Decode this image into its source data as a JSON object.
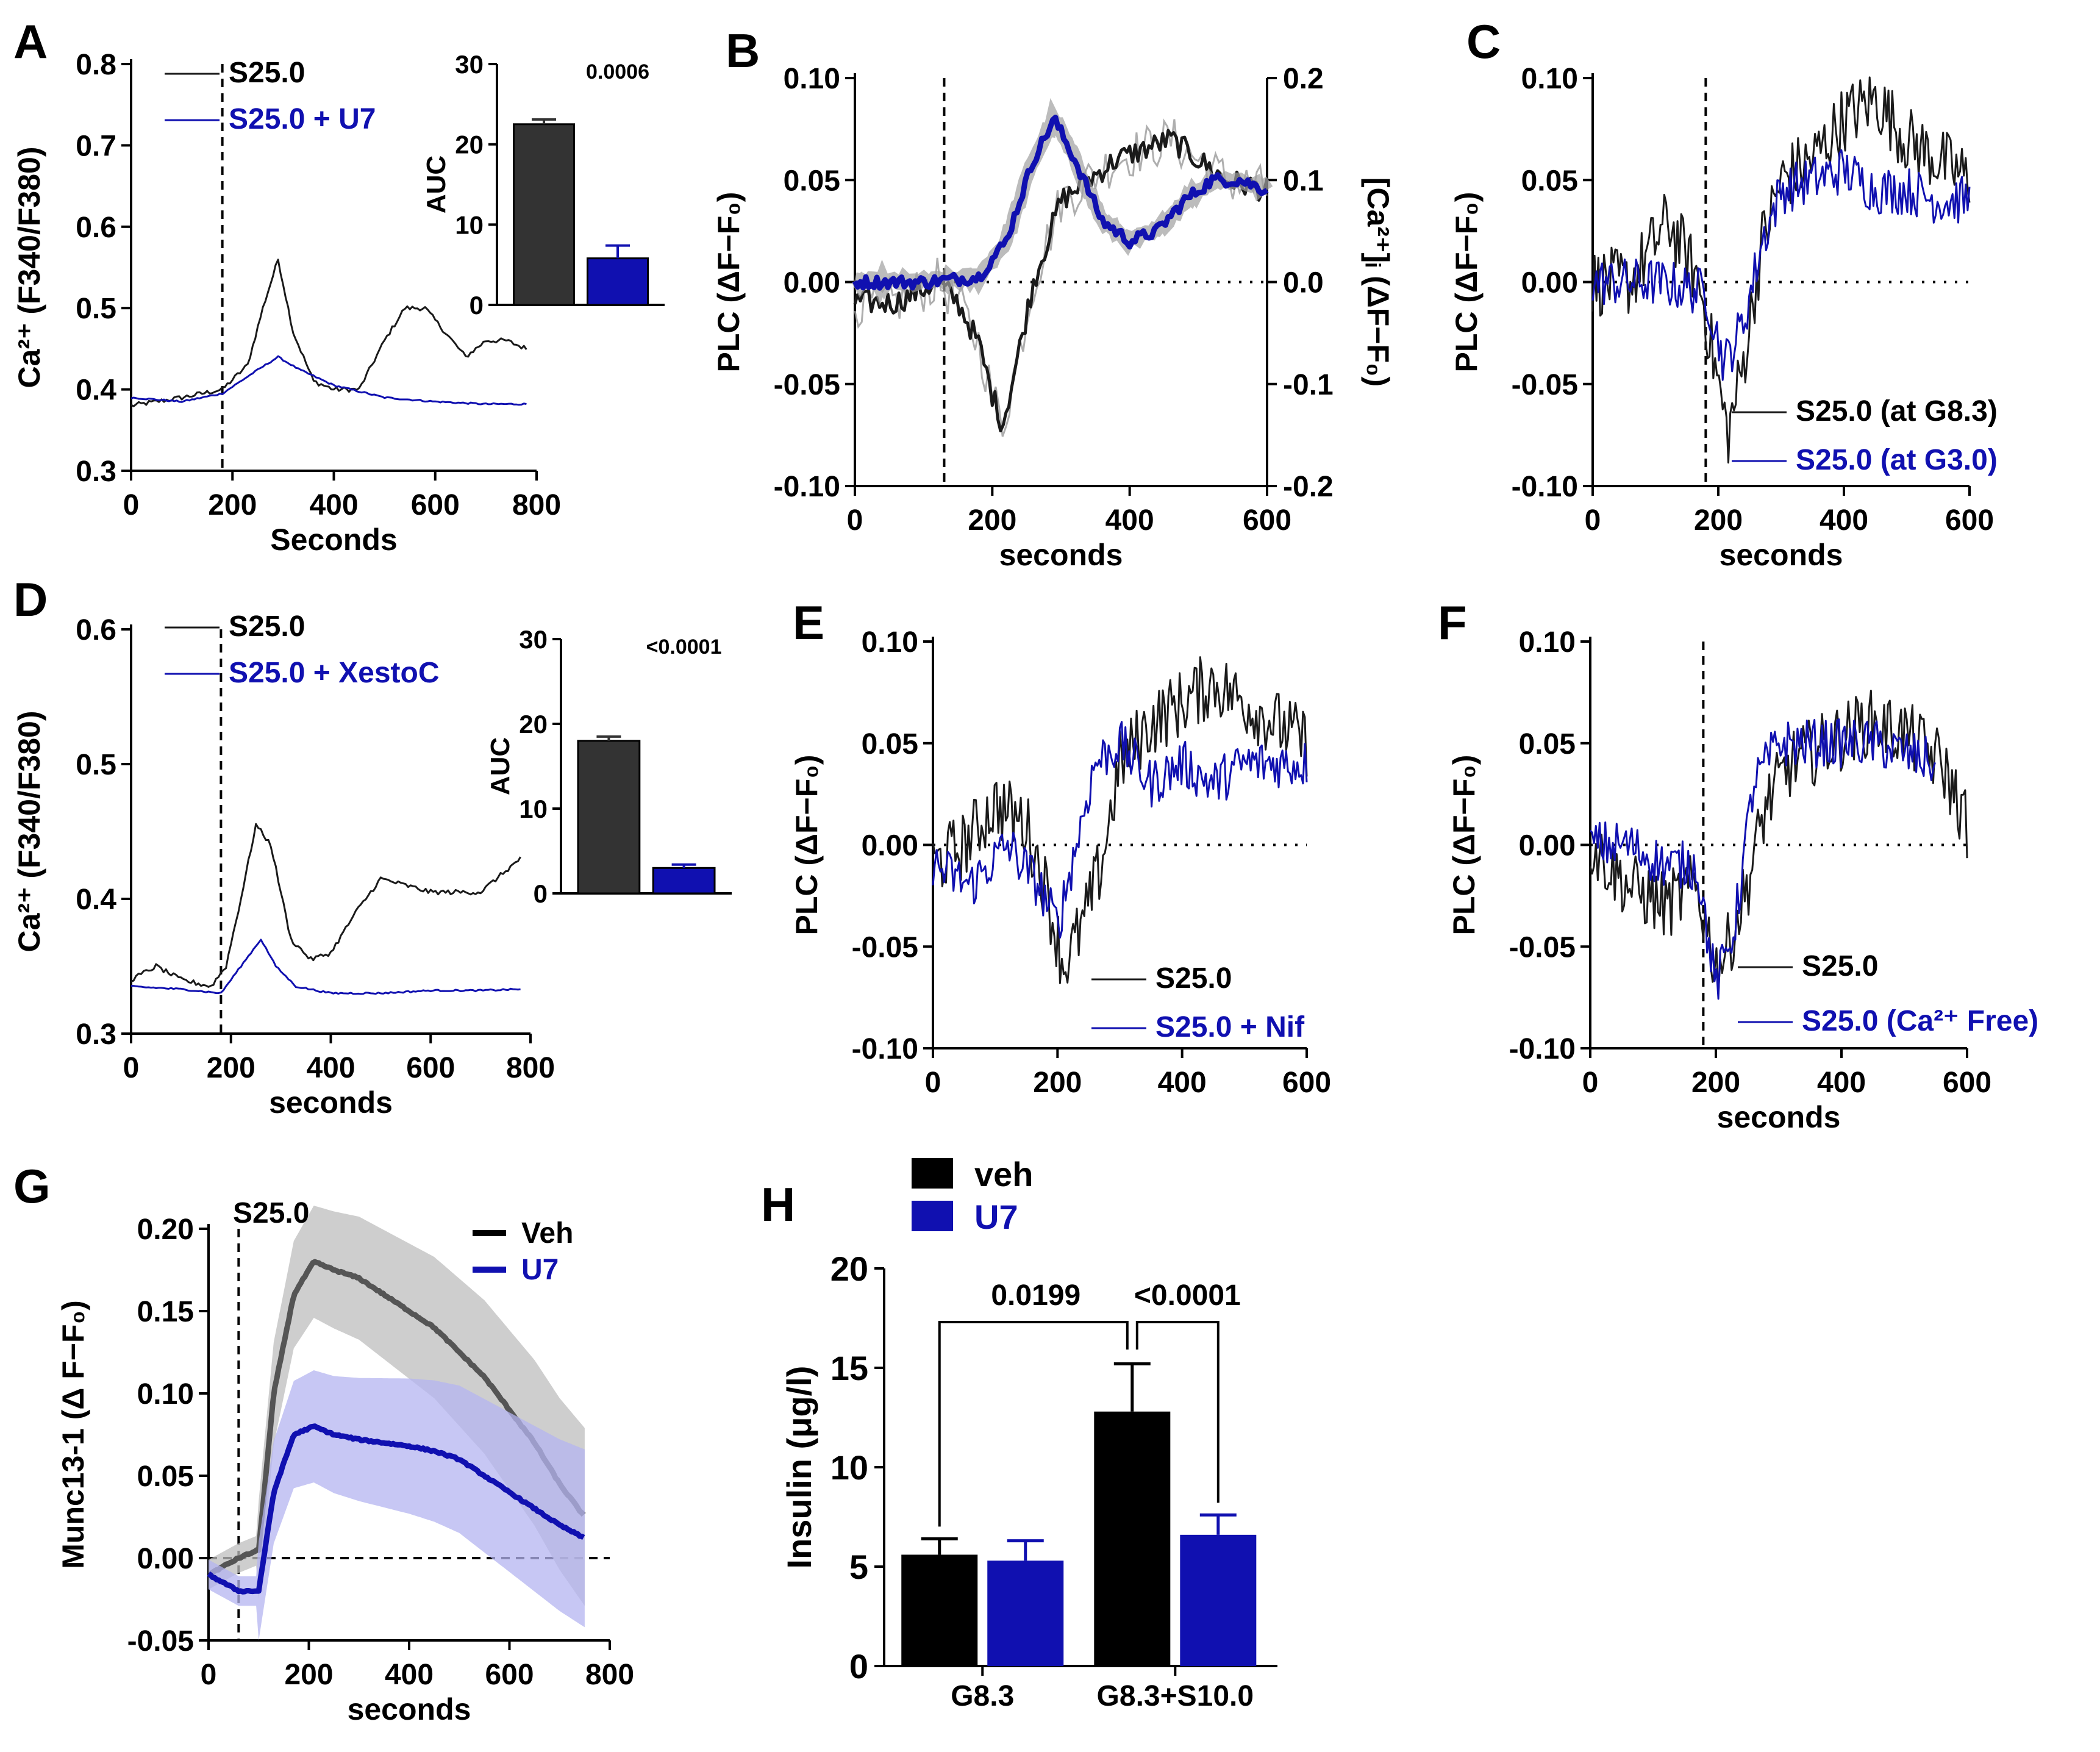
{
  "colors": {
    "black": "#1a1a1a",
    "blue": "#1010b0",
    "grey": "#555555",
    "lightgrey": "#bdbdbd",
    "lightblue": "#b4b4f0"
  },
  "chart_data": [
    {
      "panel": "A",
      "type": "line",
      "ylabel": "Ca²⁺ (F340/F380)",
      "xlabel": "Seconds",
      "xlim": [
        0,
        800
      ],
      "ylim": [
        0.3,
        0.8
      ],
      "xticks": [
        "0",
        "200",
        "400",
        "600",
        "800"
      ],
      "yticks": [
        "0.3",
        "0.4",
        "0.5",
        "0.6",
        "0.7",
        "0.8"
      ],
      "stim_x": 180,
      "series": [
        {
          "name": "S25.0",
          "color": "black",
          "x": [
            0,
            100,
            180,
            230,
            260,
            290,
            320,
            360,
            400,
            450,
            500,
            540,
            580,
            620,
            660,
            700,
            740,
            780
          ],
          "y": [
            0.38,
            0.39,
            0.4,
            0.43,
            0.5,
            0.56,
            0.47,
            0.41,
            0.4,
            0.4,
            0.46,
            0.5,
            0.5,
            0.47,
            0.44,
            0.46,
            0.46,
            0.45
          ]
        },
        {
          "name": "S25.0 + U7",
          "color": "blue",
          "x": [
            0,
            100,
            180,
            240,
            290,
            330,
            400,
            500,
            600,
            700,
            780
          ],
          "y": [
            0.39,
            0.385,
            0.395,
            0.42,
            0.44,
            0.425,
            0.405,
            0.39,
            0.385,
            0.382,
            0.382
          ]
        }
      ],
      "inset": {
        "ylabel": "AUC",
        "yticks": [
          "0",
          "10",
          "20",
          "30"
        ],
        "ylim": [
          0,
          30
        ],
        "values": [
          22.5,
          5.8
        ],
        "errors": [
          0.6,
          1.6
        ],
        "pvalue": "0.0006"
      }
    },
    {
      "panel": "B",
      "type": "line",
      "ylabel": "PLC (ΔF−F₀)",
      "ylabel2": "[Ca²⁺]ᵢ (ΔF−F₀)",
      "xlabel": "seconds",
      "xlim": [
        0,
        600
      ],
      "ylim": [
        -0.1,
        0.1
      ],
      "ylim2": [
        -0.2,
        0.2
      ],
      "xticks": [
        "0",
        "200",
        "400",
        "600"
      ],
      "yticks": [
        "-0.10",
        "-0.05",
        "0.00",
        "0.05",
        "0.10"
      ],
      "yticks2": [
        "-0.2",
        "-0.1",
        "0.0",
        "0.1",
        "0.2"
      ],
      "stim_x": 130,
      "series": [
        {
          "name": "PLC",
          "color": "black",
          "x": [
            0,
            60,
            120,
            150,
            180,
            200,
            215,
            235,
            260,
            300,
            340,
            380,
            420,
            460,
            500,
            540,
            600
          ],
          "y": [
            -0.01,
            -0.01,
            0.0,
            -0.01,
            -0.03,
            -0.055,
            -0.07,
            -0.04,
            0.0,
            0.04,
            0.05,
            0.06,
            0.065,
            0.07,
            0.06,
            0.05,
            0.045
          ]
        },
        {
          "name": "[Ca2+]i",
          "color": "blue",
          "axis": "right",
          "x": [
            0,
            100,
            180,
            220,
            260,
            290,
            320,
            360,
            400,
            440,
            480,
            520,
            560,
            600
          ],
          "y": [
            0.0,
            0.0,
            0.005,
            0.04,
            0.12,
            0.16,
            0.12,
            0.06,
            0.04,
            0.05,
            0.08,
            0.1,
            0.1,
            0.09
          ]
        }
      ]
    },
    {
      "panel": "C",
      "type": "line",
      "ylabel": "PLC (ΔF−F₀)",
      "xlabel": "seconds",
      "xlim": [
        0,
        600
      ],
      "ylim": [
        -0.1,
        0.1
      ],
      "xticks": [
        "0",
        "200",
        "400",
        "600"
      ],
      "yticks": [
        "-0.10",
        "-0.05",
        "0.00",
        "0.05",
        "0.10"
      ],
      "stim_x": 180,
      "series": [
        {
          "name": "S25.0 (at G8.3)",
          "color": "black",
          "x": [
            0,
            60,
            120,
            170,
            200,
            215,
            240,
            270,
            300,
            350,
            400,
            450,
            500,
            550,
            600
          ],
          "y": [
            0.0,
            0.0,
            0.03,
            0.0,
            -0.05,
            -0.075,
            -0.04,
            0.02,
            0.05,
            0.06,
            0.08,
            0.09,
            0.07,
            0.06,
            0.05
          ]
        },
        {
          "name": "S25.0 (at G3.0)",
          "color": "blue",
          "x": [
            0,
            100,
            180,
            210,
            240,
            270,
            300,
            350,
            400,
            450,
            500,
            550,
            600
          ],
          "y": [
            0.0,
            0.0,
            -0.005,
            -0.04,
            -0.02,
            0.02,
            0.045,
            0.05,
            0.055,
            0.045,
            0.045,
            0.04,
            0.04
          ]
        }
      ]
    },
    {
      "panel": "D",
      "type": "line",
      "ylabel": "Ca²⁺ (F340/F380)",
      "xlabel": "seconds",
      "xlim": [
        0,
        800
      ],
      "ylim": [
        0.3,
        0.6
      ],
      "xticks": [
        "0",
        "200",
        "400",
        "600",
        "800"
      ],
      "yticks": [
        "0.3",
        "0.4",
        "0.5",
        "0.6"
      ],
      "stim_x": 180,
      "series": [
        {
          "name": "S25.0",
          "color": "black",
          "x": [
            0,
            50,
            100,
            160,
            190,
            220,
            250,
            280,
            320,
            360,
            400,
            450,
            500,
            550,
            600,
            650,
            700,
            780
          ],
          "y": [
            0.34,
            0.35,
            0.34,
            0.335,
            0.35,
            0.4,
            0.455,
            0.44,
            0.37,
            0.355,
            0.36,
            0.39,
            0.415,
            0.41,
            0.405,
            0.405,
            0.405,
            0.43
          ]
        },
        {
          "name": "S25.0 + XestoC",
          "color": "blue",
          "x": [
            0,
            100,
            180,
            220,
            260,
            290,
            330,
            400,
            500,
            600,
            700,
            780
          ],
          "y": [
            0.335,
            0.333,
            0.33,
            0.35,
            0.37,
            0.35,
            0.335,
            0.33,
            0.33,
            0.332,
            0.332,
            0.333
          ]
        }
      ],
      "inset": {
        "ylabel": "AUC",
        "yticks": [
          "0",
          "10",
          "20",
          "30"
        ],
        "ylim": [
          0,
          30
        ],
        "values": [
          18.0,
          3.0
        ],
        "errors": [
          0.5,
          0.4
        ],
        "pvalue": "<0.0001"
      }
    },
    {
      "panel": "E",
      "type": "line",
      "ylabel": "PLC (ΔF−F₀)",
      "xlabel": "",
      "xlim": [
        0,
        600
      ],
      "ylim": [
        -0.1,
        0.1
      ],
      "xticks": [
        "0",
        "200",
        "400",
        "600"
      ],
      "yticks": [
        "-0.10",
        "-0.05",
        "0.00",
        "0.05",
        "0.10"
      ],
      "series": [
        {
          "name": "S25.0",
          "color": "black",
          "x": [
            0,
            50,
            100,
            150,
            180,
            210,
            240,
            270,
            300,
            350,
            400,
            450,
            500,
            550,
            600
          ],
          "y": [
            -0.01,
            0.0,
            0.02,
            0.01,
            -0.02,
            -0.06,
            -0.04,
            -0.01,
            0.04,
            0.06,
            0.07,
            0.08,
            0.07,
            0.06,
            0.05
          ]
        },
        {
          "name": "S25.0 + Nif",
          "color": "blue",
          "x": [
            0,
            60,
            120,
            170,
            200,
            230,
            260,
            300,
            350,
            400,
            450,
            500,
            550,
            600
          ],
          "y": [
            -0.01,
            -0.02,
            0.0,
            -0.02,
            -0.04,
            0.0,
            0.04,
            0.05,
            0.03,
            0.04,
            0.03,
            0.04,
            0.04,
            0.04
          ]
        }
      ]
    },
    {
      "panel": "F",
      "type": "line",
      "ylabel": "PLC (ΔF−F₀)",
      "xlabel": "seconds",
      "xlim": [
        0,
        600
      ],
      "ylim": [
        -0.1,
        0.1
      ],
      "xticks": [
        "0",
        "200",
        "400",
        "600"
      ],
      "yticks": [
        "-0.10",
        "-0.05",
        "0.00",
        "0.05",
        "0.10"
      ],
      "stim_x": 180,
      "series": [
        {
          "name": "S25.0",
          "color": "black",
          "x": [
            0,
            60,
            120,
            170,
            200,
            220,
            250,
            280,
            320,
            380,
            440,
            500,
            560,
            600
          ],
          "y": [
            0.0,
            -0.02,
            -0.03,
            -0.02,
            -0.06,
            -0.05,
            -0.02,
            0.02,
            0.04,
            0.05,
            0.06,
            0.055,
            0.04,
            0.01
          ]
        },
        {
          "name": "S25.0 (Ca²⁺ Free)",
          "color": "blue",
          "x": [
            0,
            60,
            120,
            170,
            200,
            230,
            260,
            300,
            350,
            400,
            450,
            500,
            550
          ],
          "y": [
            0.0,
            0.0,
            -0.01,
            -0.01,
            -0.07,
            -0.04,
            0.03,
            0.05,
            0.05,
            0.05,
            0.05,
            0.045,
            0.04
          ]
        }
      ]
    },
    {
      "panel": "G",
      "type": "line",
      "ylabel": "Munc13-1 (Δ F−F₀)",
      "xlabel": "seconds",
      "xlim": [
        0,
        800
      ],
      "ylim": [
        -0.05,
        0.2
      ],
      "xticks": [
        "0",
        "200",
        "400",
        "600",
        "800"
      ],
      "yticks": [
        "-0.05",
        "0.00",
        "0.05",
        "0.10",
        "0.15",
        "0.20"
      ],
      "stim_x": 60,
      "stim_label": "S25.0",
      "series": [
        {
          "name": "Veh",
          "color": "grey",
          "band": "lightgrey",
          "band_sd": 0.03,
          "x": [
            0,
            60,
            100,
            130,
            170,
            210,
            250,
            300,
            350,
            400,
            450,
            500,
            550,
            600,
            650,
            700,
            750
          ],
          "y": [
            -0.01,
            0.0,
            0.005,
            0.1,
            0.16,
            0.18,
            0.175,
            0.17,
            0.16,
            0.15,
            0.14,
            0.125,
            0.11,
            0.09,
            0.07,
            0.045,
            0.025
          ]
        },
        {
          "name": "U7",
          "color": "blue",
          "band": "lightblue",
          "band_sd": 0.03,
          "x": [
            0,
            60,
            100,
            130,
            170,
            210,
            250,
            300,
            350,
            400,
            450,
            500,
            550,
            600,
            650,
            700,
            750
          ],
          "y": [
            -0.01,
            -0.02,
            -0.02,
            0.04,
            0.075,
            0.08,
            0.075,
            0.072,
            0.07,
            0.068,
            0.065,
            0.06,
            0.05,
            0.04,
            0.03,
            0.02,
            0.012
          ]
        }
      ]
    },
    {
      "panel": "H",
      "type": "bar",
      "ylabel": "Insulin (μg/l)",
      "categories": [
        "G8.3",
        "G8.3+S10.0"
      ],
      "ylim": [
        0,
        20
      ],
      "yticks": [
        "0",
        "5",
        "10",
        "15",
        "20"
      ],
      "series": [
        {
          "name": "veh",
          "color": "black",
          "values": [
            5.6,
            12.8
          ],
          "errors": [
            0.8,
            2.4
          ]
        },
        {
          "name": "U7",
          "color": "blue",
          "values": [
            5.3,
            6.6
          ],
          "errors": [
            1.0,
            1.0
          ]
        }
      ],
      "comparisons": [
        {
          "label": "0.0199"
        },
        {
          "label": "<0.0001"
        }
      ]
    }
  ]
}
